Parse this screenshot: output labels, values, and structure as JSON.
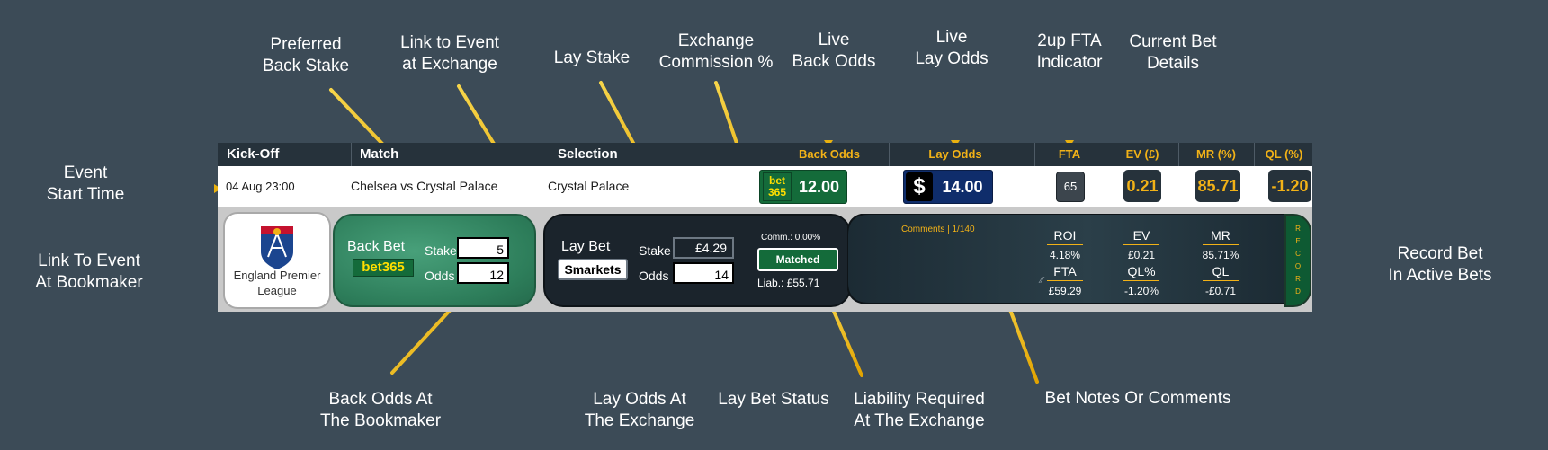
{
  "annotations": {
    "event_start_time": [
      "Event",
      "Start Time"
    ],
    "preferred_back_stake": [
      "Preferred",
      "Back Stake"
    ],
    "link_to_event_at_exchange": [
      "Link to Event",
      "at Exchange"
    ],
    "lay_stake": [
      "Lay Stake"
    ],
    "exchange_commission": [
      "Exchange",
      "Commission %"
    ],
    "live_back_odds": [
      "Live",
      "Back Odds"
    ],
    "live_lay_odds": [
      "Live",
      "Lay Odds"
    ],
    "fta_indicator": [
      "2up FTA",
      "Indicator"
    ],
    "current_bet_details": [
      "Current Bet",
      "Details"
    ],
    "link_to_event_at_bookmaker": [
      "Link To Event",
      "At Bookmaker"
    ],
    "record_bet": [
      "Record Bet",
      "In Active Bets"
    ],
    "back_odds_at_bookmaker": [
      "Back Odds At",
      "The Bookmaker"
    ],
    "lay_odds_at_exchange": [
      "Lay Odds At",
      "The Exchange"
    ],
    "lay_bet_status": [
      "Lay Bet Status"
    ],
    "liability_required": [
      "Liability Required",
      "At The Exchange"
    ],
    "bet_notes": [
      "Bet Notes Or Comments"
    ]
  },
  "header": {
    "kickoff": "Kick-Off",
    "match": "Match",
    "selection": "Selection",
    "back_odds": "Back Odds",
    "lay_odds": "Lay Odds",
    "fta": "FTA",
    "ev": "EV (£)",
    "mr": "MR (%)",
    "ql": "QL (%)"
  },
  "row": {
    "kickoff": "04 Aug 23:00",
    "match": "Chelsea vs Crystal Palace",
    "selection": "Crystal Palace",
    "bookmaker_logo": [
      "bet",
      "365"
    ],
    "back_odds": "12.00",
    "exchange_logo": "$",
    "lay_odds": "14.00",
    "fta": "65",
    "ev": "0.21",
    "mr": "85.71",
    "ql": "-1.20"
  },
  "detail": {
    "league": [
      "England Premier",
      "League"
    ],
    "back_bet": {
      "title": "Back Bet",
      "bookmaker": "bet365",
      "stake_label": "Stake",
      "stake": "5",
      "odds_label": "Odds",
      "odds": "12"
    },
    "lay_bet": {
      "title": "Lay Bet",
      "exchange": "Smarkets",
      "stake_label": "Stake",
      "stake": "£4.29",
      "odds_label": "Odds",
      "odds": "14",
      "commission": "Comm.: 0.00%",
      "status": "Matched",
      "liability": "Liab.: £55.71"
    },
    "notes": {
      "label": "Comments | 1/140"
    },
    "stats": {
      "roi_label": "ROI",
      "roi": "4.18%",
      "ev_label": "EV",
      "ev": "£0.21",
      "mr_label": "MR",
      "mr": "85.71%",
      "fta_label": "FTA",
      "fta": "£59.29",
      "qlp_label": "QL%",
      "qlp": "-1.20%",
      "ql_label": "QL",
      "ql": "-£0.71"
    },
    "record_letters": [
      "R",
      "E",
      "C",
      "O",
      "R",
      "D"
    ]
  },
  "colors": {
    "background": "#3c4b57",
    "accent": "#f2b217",
    "bet365_green": "#146b3a",
    "exchange_blue": "#0f2d6b",
    "panel_dark": "#1b242c"
  }
}
